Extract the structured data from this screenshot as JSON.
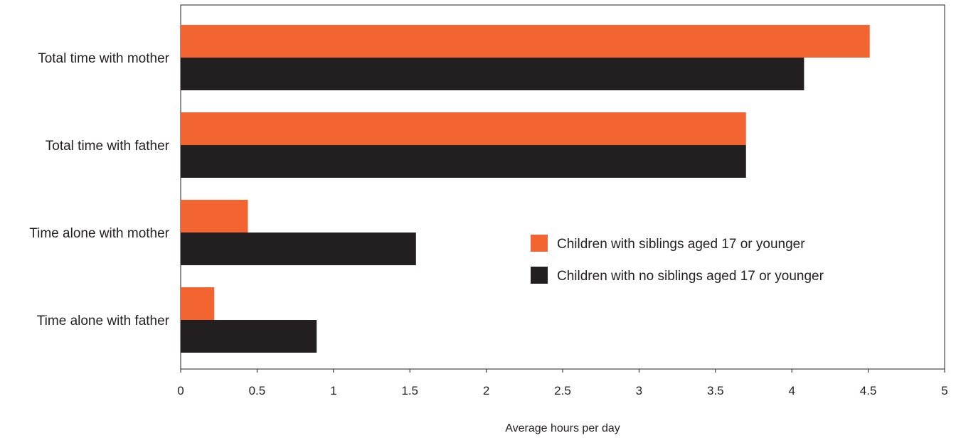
{
  "chart_data": {
    "type": "bar",
    "orientation": "horizontal",
    "categories": [
      "Total time with mother",
      "Total time with father",
      "Time alone with mother",
      "Time alone with father"
    ],
    "series": [
      {
        "name": "Children with siblings aged 17 or younger",
        "color": "#f26531",
        "values": [
          4.51,
          3.7,
          0.44,
          0.22
        ]
      },
      {
        "name": "Children with no siblings aged 17 or younger",
        "color": "#231f20",
        "values": [
          4.08,
          3.7,
          1.54,
          0.89
        ]
      }
    ],
    "xlabel": "Average hours per day",
    "ylabel": "",
    "xlim": [
      0,
      5
    ],
    "xticks": [
      "0",
      "0.5",
      "1",
      "1.5",
      "2",
      "2.5",
      "3",
      "3.5",
      "4",
      "4.5",
      "5"
    ],
    "grid": false,
    "legend_position": "right"
  }
}
